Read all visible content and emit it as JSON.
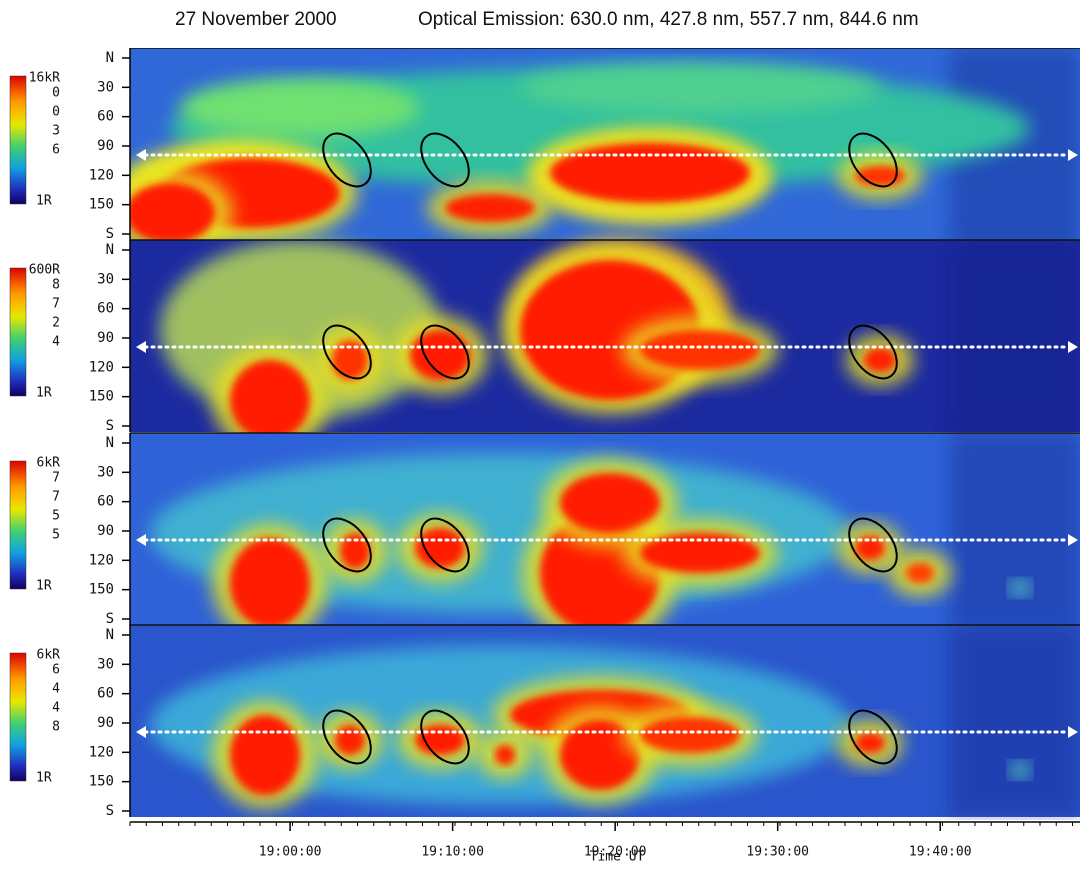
{
  "header": {
    "date": "27 November 2000",
    "emission": "Optical Emission: 630.0 nm, 427.8 nm, 557.7 nm, 844.6 nm"
  },
  "panels": [
    {
      "colorbar_labels": [
        "16kR",
        "0",
        "0",
        "3",
        "6",
        "1R"
      ],
      "ylim": [
        0,
        180
      ],
      "yticks": [
        {
          "value": 0,
          "label": "N"
        },
        30,
        60,
        90,
        120,
        150,
        {
          "value": 180,
          "label": "S"
        }
      ]
    },
    {
      "colorbar_labels": [
        "600R",
        "8",
        "7",
        "2",
        "4",
        "1R"
      ],
      "ylim": [
        0,
        180
      ],
      "yticks": [
        {
          "value": 0,
          "label": "N"
        },
        30,
        60,
        90,
        120,
        150,
        {
          "value": 180,
          "label": "S"
        }
      ]
    },
    {
      "colorbar_labels": [
        "6kR",
        "7",
        "7",
        "5",
        "5",
        "1R"
      ],
      "ylim": [
        0,
        180
      ],
      "yticks": [
        {
          "value": 0,
          "label": "N"
        },
        30,
        60,
        90,
        120,
        150,
        {
          "value": 180,
          "label": "S"
        }
      ]
    },
    {
      "colorbar_labels": [
        "6kR",
        "6",
        "4",
        "4",
        "8",
        "1R"
      ],
      "ylim": [
        0,
        180
      ],
      "yticks": [
        {
          "value": 0,
          "label": "N"
        },
        30,
        60,
        90,
        120,
        150,
        {
          "value": 180,
          "label": "S"
        }
      ]
    }
  ],
  "x_axis": {
    "label": "Time UT",
    "xlim": [
      50.15,
      108.6
    ],
    "xticks": [
      {
        "value": 60,
        "label": "19:00:00"
      },
      {
        "value": 70,
        "label": "19:10:00"
      },
      {
        "value": 80,
        "label": "19:20:00"
      },
      {
        "value": 90,
        "label": "19:30:00"
      },
      {
        "value": 100,
        "label": "19:40:00"
      }
    ]
  }
}
